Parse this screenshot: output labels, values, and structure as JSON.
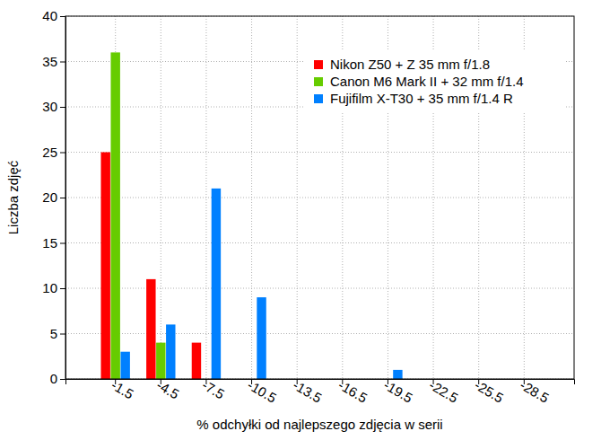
{
  "chart_data": {
    "type": "bar",
    "x_label": "% odchyłki od najlepszego zdjęcia w serii",
    "y_label": "Liczba zdjęć",
    "categories": [
      "-1.5",
      "-4.5",
      "-7.5",
      "-10.5",
      "-13.5",
      "-16.5",
      "-19.5",
      "-22.5",
      "-25.5",
      "-28.5"
    ],
    "series": [
      {
        "name": "Nikon Z50 + Z 35 mm f/1.8",
        "color": "#ff0000",
        "values": [
          25,
          11,
          4,
          0,
          0,
          0,
          0,
          0,
          0,
          0
        ]
      },
      {
        "name": "Canon M6 Mark II + 32 mm f/1.4",
        "color": "#66cc00",
        "values": [
          36,
          4,
          0,
          0,
          0,
          0,
          0,
          0,
          0,
          0
        ]
      },
      {
        "name": "Fujifilm X-T30 + 35 mm f/1.4 R",
        "color": "#0080ff",
        "values": [
          3,
          6,
          21,
          9,
          0,
          0,
          1,
          0,
          0,
          0
        ]
      }
    ],
    "ylim": [
      0,
      40
    ],
    "yticks": [
      0,
      5,
      10,
      15,
      20,
      25,
      30,
      35,
      40
    ],
    "grid": true,
    "legend": "upper right"
  }
}
